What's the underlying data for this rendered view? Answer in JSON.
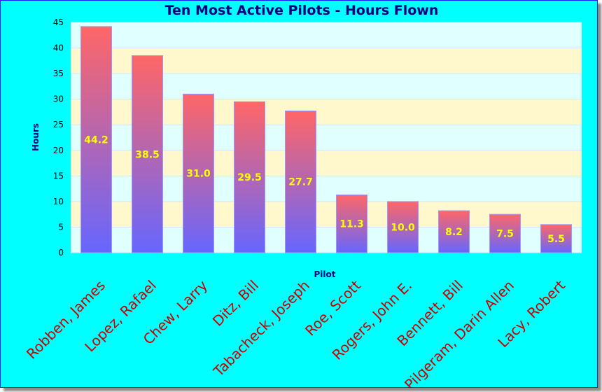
{
  "colors": {
    "background": "#00ffff",
    "plot_band_light": "#e0ffff",
    "plot_band_alt": "#fff8cc",
    "bar_top": "#ff6666",
    "bar_bottom": "#6666ff",
    "bar_border": "#9999ff",
    "value_label": "#ffff00",
    "title": "#000080",
    "category_label": "#cc0000"
  },
  "chart_data": {
    "type": "bar",
    "title": "Ten Most Active Pilots - Hours Flown",
    "xlabel": "Pilot",
    "ylabel": "Hours",
    "ylim": [
      0,
      45
    ],
    "yticks": [
      0,
      5,
      10,
      15,
      20,
      25,
      30,
      35,
      40,
      45
    ],
    "grid": true,
    "legend": "none",
    "categories": [
      "Robben, James",
      "Lopez, Rafael",
      "Chew, Larry",
      "Ditz, Bill",
      "Tabacheck, Joseph",
      "Roe, Scott",
      "Rogers, John E.",
      "Bennett, Bill",
      "Pilgeram, Darin Allen",
      "Lacy, Robert"
    ],
    "values": [
      44.2,
      38.5,
      31.0,
      29.5,
      27.7,
      11.3,
      10.0,
      8.2,
      7.5,
      5.5
    ],
    "value_labels": [
      "44.2",
      "38.5",
      "31.0",
      "29.5",
      "27.7",
      "11.3",
      "10.0",
      "8.2",
      "7.5",
      "5.5"
    ]
  }
}
